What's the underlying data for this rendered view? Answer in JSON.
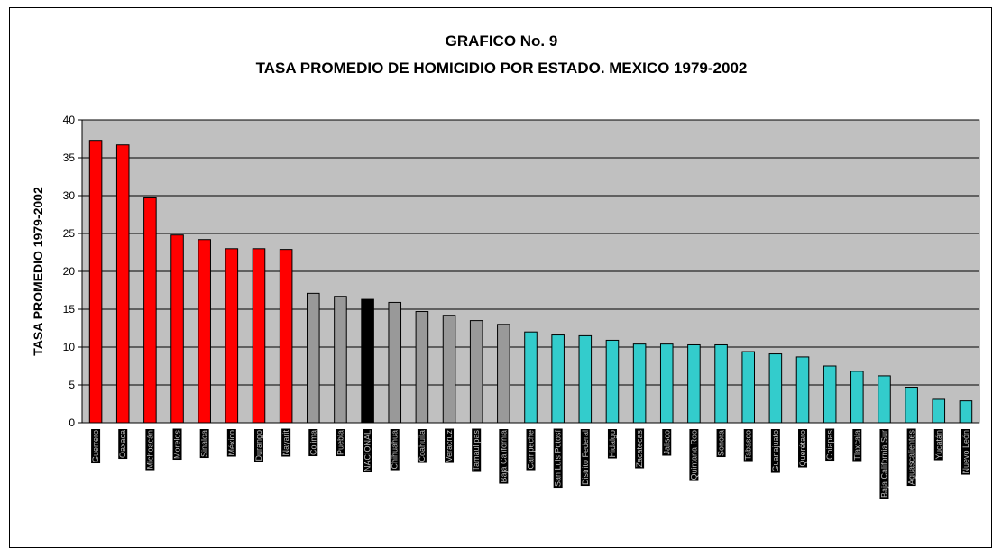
{
  "chart_data": {
    "type": "bar",
    "title": "GRAFICO No. 9",
    "subtitle": "TASA PROMEDIO DE HOMICIDIO POR ESTADO. MEXICO 1979-2002",
    "xlabel": "",
    "ylabel": "TASA PROMEDIO 1979-2002",
    "ylim": [
      0,
      40
    ],
    "yticks": [
      0,
      5,
      10,
      15,
      20,
      25,
      30,
      35,
      40
    ],
    "grid": true,
    "legend": "none",
    "categories": [
      "Guerrero",
      "Oaxaca",
      "Michoacán",
      "Morelos",
      "Sinaloa",
      "México",
      "Durango",
      "Nayarit",
      "Colima",
      "Puebla",
      "NACIONAL",
      "Chihuahua",
      "Coahuila",
      "Veracruz",
      "Tamaulipas",
      "Baja California",
      "Campeche",
      "San Luis Potosí",
      "Distrito Federal",
      "Hidalgo",
      "Zacatecas",
      "Jalisco",
      "Quintana Roo",
      "Sonora",
      "Tabasco",
      "Guanajuato",
      "Querétaro",
      "Chiapas",
      "Tlaxcala",
      "Baja California Sur",
      "Aguascalientes",
      "Yucatán",
      "Nuevo León"
    ],
    "values": [
      37.3,
      36.7,
      29.7,
      24.8,
      24.2,
      23.0,
      23.0,
      22.9,
      17.1,
      16.7,
      16.3,
      15.9,
      14.7,
      14.2,
      13.5,
      13.0,
      12.0,
      11.6,
      11.5,
      10.9,
      10.4,
      10.4,
      10.3,
      10.3,
      9.4,
      9.1,
      8.7,
      7.5,
      6.8,
      6.2,
      4.7,
      3.1,
      2.9
    ],
    "bar_colors": [
      "#ff0000",
      "#ff0000",
      "#ff0000",
      "#ff0000",
      "#ff0000",
      "#ff0000",
      "#ff0000",
      "#ff0000",
      "#999999",
      "#999999",
      "#000000",
      "#999999",
      "#999999",
      "#999999",
      "#999999",
      "#999999",
      "#33cccc",
      "#33cccc",
      "#33cccc",
      "#33cccc",
      "#33cccc",
      "#33cccc",
      "#33cccc",
      "#33cccc",
      "#33cccc",
      "#33cccc",
      "#33cccc",
      "#33cccc",
      "#33cccc",
      "#33cccc",
      "#33cccc",
      "#33cccc",
      "#33cccc"
    ],
    "plot_background": "#c0c0c0"
  }
}
